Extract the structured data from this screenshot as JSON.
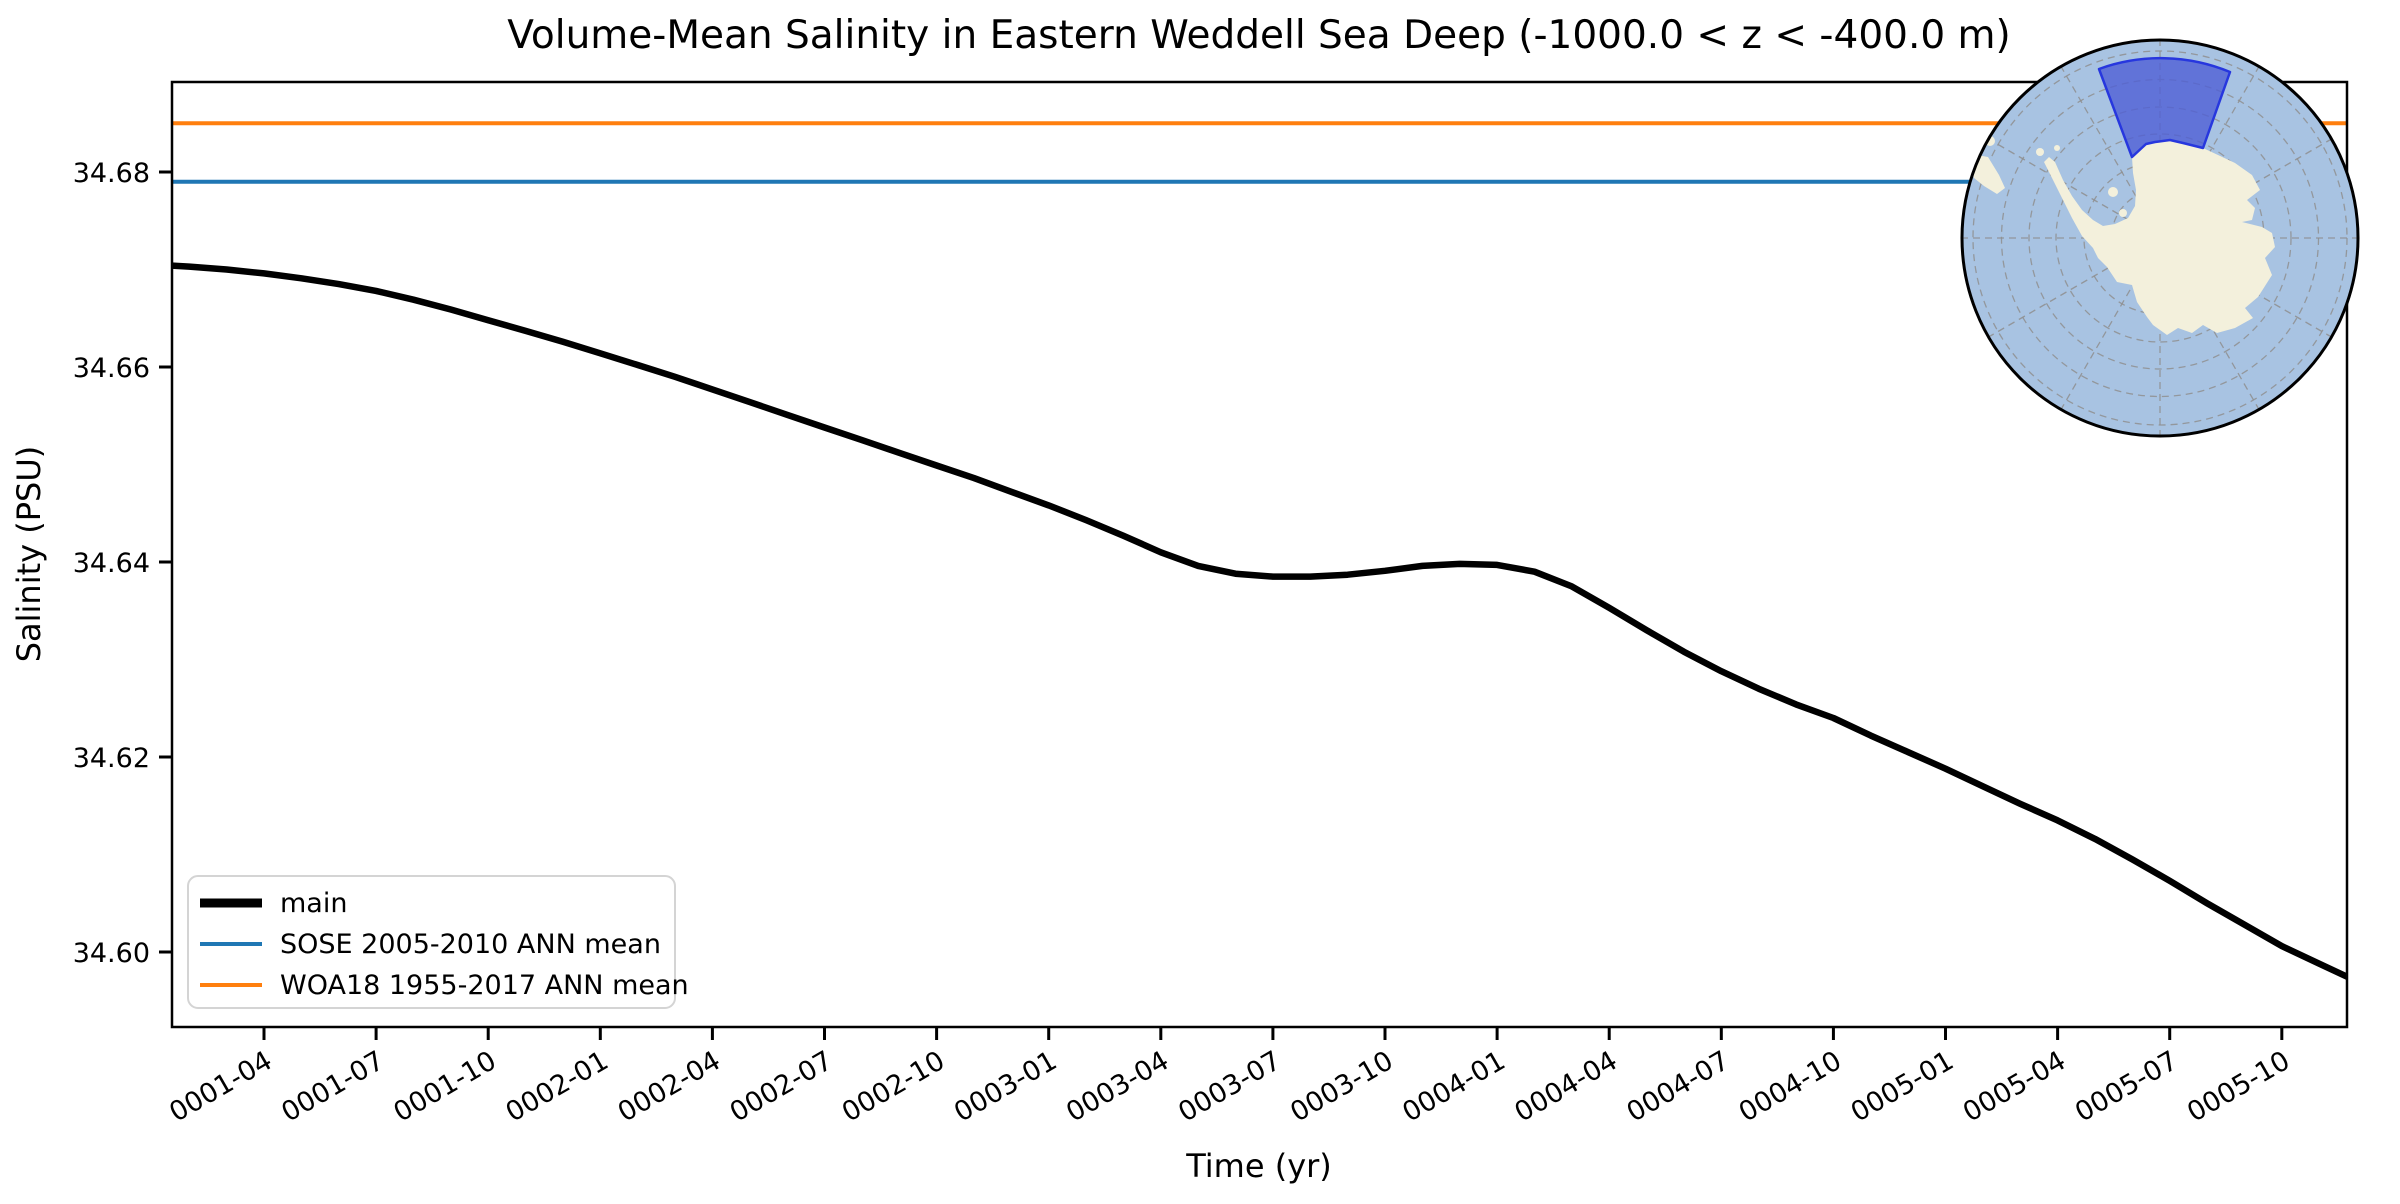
{
  "chart_data": {
    "type": "line",
    "title": "Volume-Mean Salinity in Eastern Weddell Sea Deep (-1000.0 < z < -400.0 m)",
    "xlabel": "Time (yr)",
    "ylabel": "Salinity (PSU)",
    "x_unit": "months since 0001-01",
    "x_tick_labels": [
      "0001-04",
      "0001-07",
      "0001-10",
      "0002-01",
      "0002-04",
      "0002-07",
      "0002-10",
      "0003-01",
      "0003-04",
      "0003-07",
      "0003-10",
      "0004-01",
      "0004-04",
      "0004-07",
      "0004-10",
      "0005-01",
      "0005-04",
      "0005-07",
      "0005-10"
    ],
    "x_tick_months": [
      3,
      6,
      9,
      12,
      15,
      18,
      21,
      24,
      27,
      30,
      33,
      36,
      39,
      42,
      45,
      48,
      51,
      54,
      57
    ],
    "x_tick_rotation_deg": 30,
    "y_ticks": [
      34.6,
      34.62,
      34.64,
      34.66,
      34.68
    ],
    "ylim": [
      34.592,
      34.689
    ],
    "xlim_months": [
      0.53,
      58.84
    ],
    "grid": false,
    "legend_location": "lower left",
    "series": [
      {
        "name": "main",
        "color": "#000000",
        "linewidth": 6.5,
        "start_month": "0001-01",
        "end_month": "0005-12",
        "values": [
          34.6705,
          34.6703,
          34.67,
          34.6696,
          34.6691,
          34.6685,
          34.6678,
          34.6669,
          34.6659,
          34.6648,
          34.6637,
          34.6626,
          34.6614,
          34.6602,
          34.659,
          34.6577,
          34.6564,
          34.6551,
          34.6538,
          34.6525,
          34.6512,
          34.6499,
          34.6486,
          34.6472,
          34.6458,
          34.6443,
          34.6427,
          34.641,
          34.6396,
          34.6388,
          34.6385,
          34.6385,
          34.6387,
          34.6391,
          34.6396,
          34.6398,
          34.6397,
          34.639,
          34.6375,
          34.6353,
          34.633,
          34.6308,
          34.6288,
          34.627,
          34.6254,
          34.624,
          34.6222,
          34.6205,
          34.6188,
          34.617,
          34.6152,
          34.6135,
          34.6116,
          34.6095,
          34.6073,
          34.605,
          34.6028,
          34.6006,
          34.5988,
          34.597
        ]
      },
      {
        "name": "SOSE 2005-2010 ANN mean",
        "color": "#1f77b4",
        "linewidth": 4,
        "constant": 34.679
      },
      {
        "name": "WOA18 1955-2017 ANN mean",
        "color": "#ff7f0e",
        "linewidth": 4,
        "constant": 34.685
      }
    ]
  },
  "inset_map": {
    "projection": "south-polar-stereographic",
    "ocean_color": "#a8c3e2",
    "land_color": "#f3f0dc",
    "highlight_fill": "#4f5fd6",
    "highlight_stroke": "#2737de",
    "graticule_color": "#8f8f8f",
    "outline_color": "#000000"
  }
}
